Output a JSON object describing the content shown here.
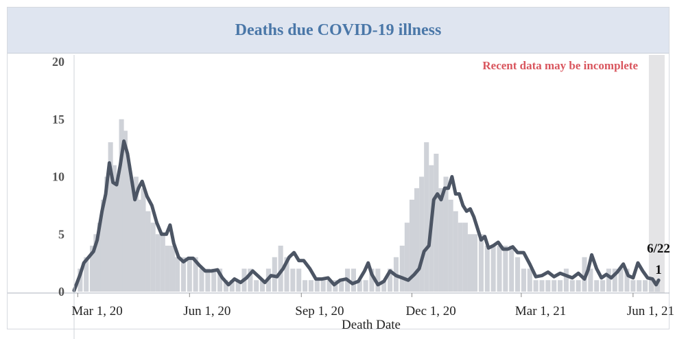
{
  "chart_data": {
    "type": "bar",
    "title": "Deaths due COVID-19 illness",
    "xlabel": "Death Date",
    "ylabel": "",
    "ylim": [
      0,
      20
    ],
    "y_ticks": [
      "0",
      "5",
      "10",
      "15",
      "20"
    ],
    "x_ticks": [
      {
        "date": "2020-03-01",
        "label": "Mar 1, 20"
      },
      {
        "date": "2020-06-01",
        "label": "Jun 1, 20"
      },
      {
        "date": "2020-09-01",
        "label": "Sep 1, 20"
      },
      {
        "date": "2020-12-01",
        "label": "Dec 1, 20"
      },
      {
        "date": "2021-03-01",
        "label": "Mar 1, 21"
      },
      {
        "date": "2021-06-01",
        "label": "Jun 1, 21"
      }
    ],
    "x_range": [
      "2020-02-27",
      "2021-07-01"
    ],
    "note": "Recent data may be incomplete",
    "incomplete_period": [
      "2021-06-14",
      "2021-06-27"
    ],
    "annotation": {
      "date": "2021-06-22",
      "label": "6/22",
      "value_label": "1",
      "value": 1
    },
    "series": [
      {
        "kind": "bar",
        "color": "#cfd2d8",
        "description": "daily deaths",
        "points": [
          [
            "2020-03-03",
            2
          ],
          [
            "2020-03-08",
            3
          ],
          [
            "2020-03-13",
            4
          ],
          [
            "2020-03-16",
            5
          ],
          [
            "2020-03-19",
            6
          ],
          [
            "2020-03-22",
            8
          ],
          [
            "2020-03-25",
            10
          ],
          [
            "2020-03-28",
            13
          ],
          [
            "2020-03-31",
            11
          ],
          [
            "2020-04-03",
            10
          ],
          [
            "2020-04-06",
            15
          ],
          [
            "2020-04-09",
            14
          ],
          [
            "2020-04-12",
            11
          ],
          [
            "2020-04-15",
            9
          ],
          [
            "2020-04-18",
            10
          ],
          [
            "2020-04-21",
            8
          ],
          [
            "2020-04-24",
            9
          ],
          [
            "2020-04-28",
            7
          ],
          [
            "2020-05-02",
            6
          ],
          [
            "2020-05-06",
            5
          ],
          [
            "2020-05-10",
            5
          ],
          [
            "2020-05-14",
            4
          ],
          [
            "2020-05-18",
            4
          ],
          [
            "2020-05-22",
            3
          ],
          [
            "2020-05-27",
            3
          ],
          [
            "2020-06-01",
            3
          ],
          [
            "2020-06-06",
            3
          ],
          [
            "2020-06-11",
            2
          ],
          [
            "2020-06-16",
            2
          ],
          [
            "2020-06-21",
            2
          ],
          [
            "2020-06-26",
            2
          ],
          [
            "2020-07-01",
            1
          ],
          [
            "2020-07-06",
            1
          ],
          [
            "2020-07-11",
            1
          ],
          [
            "2020-07-16",
            2
          ],
          [
            "2020-07-21",
            2
          ],
          [
            "2020-07-26",
            1
          ],
          [
            "2020-07-31",
            1
          ],
          [
            "2020-08-05",
            2
          ],
          [
            "2020-08-10",
            3
          ],
          [
            "2020-08-15",
            4
          ],
          [
            "2020-08-20",
            3
          ],
          [
            "2020-08-25",
            2
          ],
          [
            "2020-08-30",
            2
          ],
          [
            "2020-09-04",
            1
          ],
          [
            "2020-09-09",
            1
          ],
          [
            "2020-09-14",
            1
          ],
          [
            "2020-09-19",
            1
          ],
          [
            "2020-09-24",
            1
          ],
          [
            "2020-09-29",
            1
          ],
          [
            "2020-10-04",
            1
          ],
          [
            "2020-10-09",
            2
          ],
          [
            "2020-10-14",
            2
          ],
          [
            "2020-10-19",
            1
          ],
          [
            "2020-10-24",
            1
          ],
          [
            "2020-10-29",
            2
          ],
          [
            "2020-11-03",
            2
          ],
          [
            "2020-11-08",
            1
          ],
          [
            "2020-11-13",
            2
          ],
          [
            "2020-11-18",
            3
          ],
          [
            "2020-11-23",
            4
          ],
          [
            "2020-11-27",
            6
          ],
          [
            "2020-12-01",
            8
          ],
          [
            "2020-12-05",
            9
          ],
          [
            "2020-12-09",
            10
          ],
          [
            "2020-12-13",
            13
          ],
          [
            "2020-12-17",
            11
          ],
          [
            "2020-12-21",
            12
          ],
          [
            "2020-12-25",
            9
          ],
          [
            "2020-12-29",
            10
          ],
          [
            "2021-01-02",
            8
          ],
          [
            "2021-01-06",
            7
          ],
          [
            "2021-01-10",
            6
          ],
          [
            "2021-01-14",
            6
          ],
          [
            "2021-01-18",
            5
          ],
          [
            "2021-01-22",
            5
          ],
          [
            "2021-01-27",
            5
          ],
          [
            "2021-02-01",
            4
          ],
          [
            "2021-02-06",
            4
          ],
          [
            "2021-02-11",
            4
          ],
          [
            "2021-02-16",
            4
          ],
          [
            "2021-02-21",
            4
          ],
          [
            "2021-02-26",
            3
          ],
          [
            "2021-03-03",
            2
          ],
          [
            "2021-03-08",
            2
          ],
          [
            "2021-03-13",
            1
          ],
          [
            "2021-03-18",
            1
          ],
          [
            "2021-03-23",
            1
          ],
          [
            "2021-03-28",
            1
          ],
          [
            "2021-04-02",
            1
          ],
          [
            "2021-04-07",
            2
          ],
          [
            "2021-04-12",
            1
          ],
          [
            "2021-04-17",
            1
          ],
          [
            "2021-04-22",
            3
          ],
          [
            "2021-04-27",
            2
          ],
          [
            "2021-05-02",
            1
          ],
          [
            "2021-05-07",
            1
          ],
          [
            "2021-05-12",
            2
          ],
          [
            "2021-05-17",
            2
          ],
          [
            "2021-05-22",
            2
          ],
          [
            "2021-05-27",
            2
          ],
          [
            "2021-06-01",
            1
          ],
          [
            "2021-06-06",
            1
          ],
          [
            "2021-06-11",
            1
          ],
          [
            "2021-06-16",
            1
          ],
          [
            "2021-06-21",
            1
          ]
        ]
      },
      {
        "kind": "line",
        "color": "#4c5564",
        "description": "7-day average",
        "points": [
          [
            "2020-02-27",
            0.1
          ],
          [
            "2020-03-03",
            1.5
          ],
          [
            "2020-03-06",
            2.5
          ],
          [
            "2020-03-10",
            3
          ],
          [
            "2020-03-14",
            3.5
          ],
          [
            "2020-03-17",
            4.5
          ],
          [
            "2020-03-21",
            7
          ],
          [
            "2020-03-24",
            8.5
          ],
          [
            "2020-03-27",
            11.2
          ],
          [
            "2020-03-30",
            9.5
          ],
          [
            "2020-04-02",
            9.3
          ],
          [
            "2020-04-05",
            11
          ],
          [
            "2020-04-08",
            13.1
          ],
          [
            "2020-04-11",
            12
          ],
          [
            "2020-04-14",
            10
          ],
          [
            "2020-04-17",
            8
          ],
          [
            "2020-04-20",
            9
          ],
          [
            "2020-04-23",
            9.6
          ],
          [
            "2020-04-27",
            8.3
          ],
          [
            "2020-05-01",
            7.5
          ],
          [
            "2020-05-05",
            6
          ],
          [
            "2020-05-09",
            5
          ],
          [
            "2020-05-13",
            5
          ],
          [
            "2020-05-16",
            5.8
          ],
          [
            "2020-05-19",
            4.2
          ],
          [
            "2020-05-23",
            3
          ],
          [
            "2020-05-27",
            2.6
          ],
          [
            "2020-05-31",
            2.9
          ],
          [
            "2020-06-04",
            2.9
          ],
          [
            "2020-06-09",
            2.3
          ],
          [
            "2020-06-14",
            1.8
          ],
          [
            "2020-06-19",
            1.8
          ],
          [
            "2020-06-24",
            1.9
          ],
          [
            "2020-06-28",
            1.2
          ],
          [
            "2020-07-03",
            0.6
          ],
          [
            "2020-07-08",
            1.1
          ],
          [
            "2020-07-13",
            0.8
          ],
          [
            "2020-07-18",
            1.2
          ],
          [
            "2020-07-23",
            1.8
          ],
          [
            "2020-07-28",
            1.3
          ],
          [
            "2020-08-02",
            0.8
          ],
          [
            "2020-08-07",
            1.4
          ],
          [
            "2020-08-12",
            1.3
          ],
          [
            "2020-08-17",
            2
          ],
          [
            "2020-08-22",
            3
          ],
          [
            "2020-08-26",
            3.4
          ],
          [
            "2020-08-30",
            2.7
          ],
          [
            "2020-09-03",
            2.7
          ],
          [
            "2020-09-08",
            2
          ],
          [
            "2020-09-13",
            1.1
          ],
          [
            "2020-09-18",
            1.1
          ],
          [
            "2020-09-23",
            1.2
          ],
          [
            "2020-09-28",
            0.6
          ],
          [
            "2020-10-03",
            1
          ],
          [
            "2020-10-08",
            1.1
          ],
          [
            "2020-10-13",
            0.7
          ],
          [
            "2020-10-18",
            0.9
          ],
          [
            "2020-10-23",
            1.8
          ],
          [
            "2020-10-26",
            2.5
          ],
          [
            "2020-10-29",
            1.5
          ],
          [
            "2020-11-03",
            0.6
          ],
          [
            "2020-11-08",
            0.9
          ],
          [
            "2020-11-13",
            1.8
          ],
          [
            "2020-11-18",
            1.4
          ],
          [
            "2020-11-23",
            1.2
          ],
          [
            "2020-11-28",
            1
          ],
          [
            "2020-12-03",
            1.5
          ],
          [
            "2020-12-07",
            2
          ],
          [
            "2020-12-11",
            3.5
          ],
          [
            "2020-12-15",
            4
          ],
          [
            "2020-12-19",
            8
          ],
          [
            "2020-12-22",
            8.5
          ],
          [
            "2020-12-25",
            8
          ],
          [
            "2020-12-28",
            9
          ],
          [
            "2020-12-31",
            9
          ],
          [
            "2021-01-03",
            10
          ],
          [
            "2021-01-06",
            8.5
          ],
          [
            "2021-01-09",
            8.5
          ],
          [
            "2021-01-12",
            7.5
          ],
          [
            "2021-01-15",
            7
          ],
          [
            "2021-01-18",
            7.2
          ],
          [
            "2021-01-21",
            6.5
          ],
          [
            "2021-01-24",
            5.5
          ],
          [
            "2021-01-27",
            4.5
          ],
          [
            "2021-01-30",
            4.8
          ],
          [
            "2021-02-02",
            3.8
          ],
          [
            "2021-02-06",
            4
          ],
          [
            "2021-02-10",
            4.3
          ],
          [
            "2021-02-14",
            3.7
          ],
          [
            "2021-02-18",
            3.7
          ],
          [
            "2021-02-22",
            3.9
          ],
          [
            "2021-02-26",
            3.4
          ],
          [
            "2021-03-03",
            3.4
          ],
          [
            "2021-03-08",
            2.4
          ],
          [
            "2021-03-13",
            1.3
          ],
          [
            "2021-03-18",
            1.4
          ],
          [
            "2021-03-23",
            1.7
          ],
          [
            "2021-03-28",
            1.3
          ],
          [
            "2021-04-02",
            1.6
          ],
          [
            "2021-04-07",
            1.4
          ],
          [
            "2021-04-12",
            1.2
          ],
          [
            "2021-04-17",
            1.6
          ],
          [
            "2021-04-22",
            1.1
          ],
          [
            "2021-04-25",
            1.9
          ],
          [
            "2021-04-28",
            3.2
          ],
          [
            "2021-05-02",
            2
          ],
          [
            "2021-05-06",
            1.2
          ],
          [
            "2021-05-10",
            1.5
          ],
          [
            "2021-05-14",
            1.2
          ],
          [
            "2021-05-19",
            1.7
          ],
          [
            "2021-05-24",
            2.4
          ],
          [
            "2021-05-28",
            1.4
          ],
          [
            "2021-06-01",
            1.2
          ],
          [
            "2021-06-05",
            2.5
          ],
          [
            "2021-06-09",
            1.8
          ],
          [
            "2021-06-13",
            1.2
          ],
          [
            "2021-06-17",
            1.1
          ],
          [
            "2021-06-20",
            0.6
          ],
          [
            "2021-06-22",
            1
          ]
        ]
      }
    ]
  }
}
